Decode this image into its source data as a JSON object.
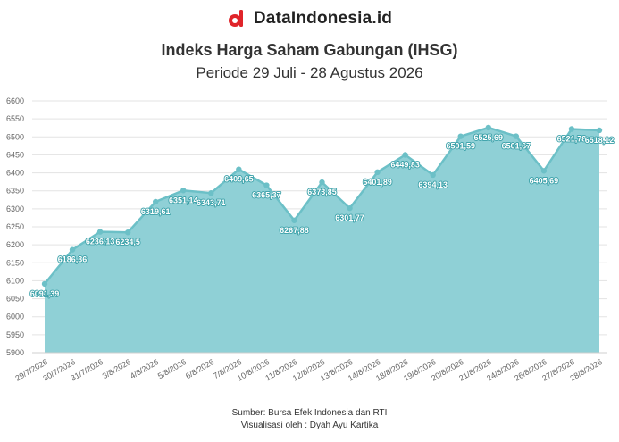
{
  "brand": {
    "name": "DataIndonesia.id",
    "logo_color": "#e0242a"
  },
  "chart_data": {
    "type": "area",
    "title": "Indeks Harga Saham Gabungan (IHSG)",
    "subtitle": "Periode 29 Juli - 28 Agustus 2026",
    "categories": [
      "29/7/2026",
      "30/7/2026",
      "31/7/2026",
      "3/8/2026",
      "4/8/2026",
      "5/8/2026",
      "6/8/2026",
      "7/8/2026",
      "10/8/2026",
      "11/8/2026",
      "12/8/2026",
      "13/8/2026",
      "14/8/2026",
      "18/8/2026",
      "19/8/2026",
      "20/8/2026",
      "21/8/2026",
      "24/8/2026",
      "26/8/2026",
      "27/8/2026",
      "28/8/2026"
    ],
    "values": [
      6091.39,
      6186.36,
      6236.13,
      6234.5,
      6319.61,
      6351.14,
      6343.71,
      6409.65,
      6365.37,
      6267.88,
      6373.85,
      6301.77,
      6401.89,
      6449.83,
      6394.13,
      6501.59,
      6525.69,
      6501.67,
      6405.69,
      6521.78,
      6518.12
    ],
    "labels": [
      "6091,39",
      "6186,36",
      "6236,13",
      "6234,5",
      "6319,61",
      "6351,14",
      "6343,71",
      "6409,65",
      "6365,37",
      "6267,88",
      "6373,85",
      "6301,77",
      "6401,89",
      "6449,83",
      "6394,13",
      "6501,59",
      "6525,69",
      "6501,67",
      "6405,69",
      "6521,78",
      "6518,12"
    ],
    "yticks": [
      5900,
      5950,
      6000,
      6050,
      6100,
      6150,
      6200,
      6250,
      6300,
      6350,
      6400,
      6450,
      6500,
      6550,
      6600
    ],
    "ylim": [
      5900,
      6600
    ],
    "grid": true,
    "colors": {
      "fill": "#8fd0d6",
      "line": "#6cc0c7",
      "grid": "#e3e3e3"
    }
  },
  "footer": {
    "source": "Sumber: Bursa Efek Indonesia dan RTI",
    "visualization": "Visualisasi oleh : Dyah Ayu Kartika"
  }
}
